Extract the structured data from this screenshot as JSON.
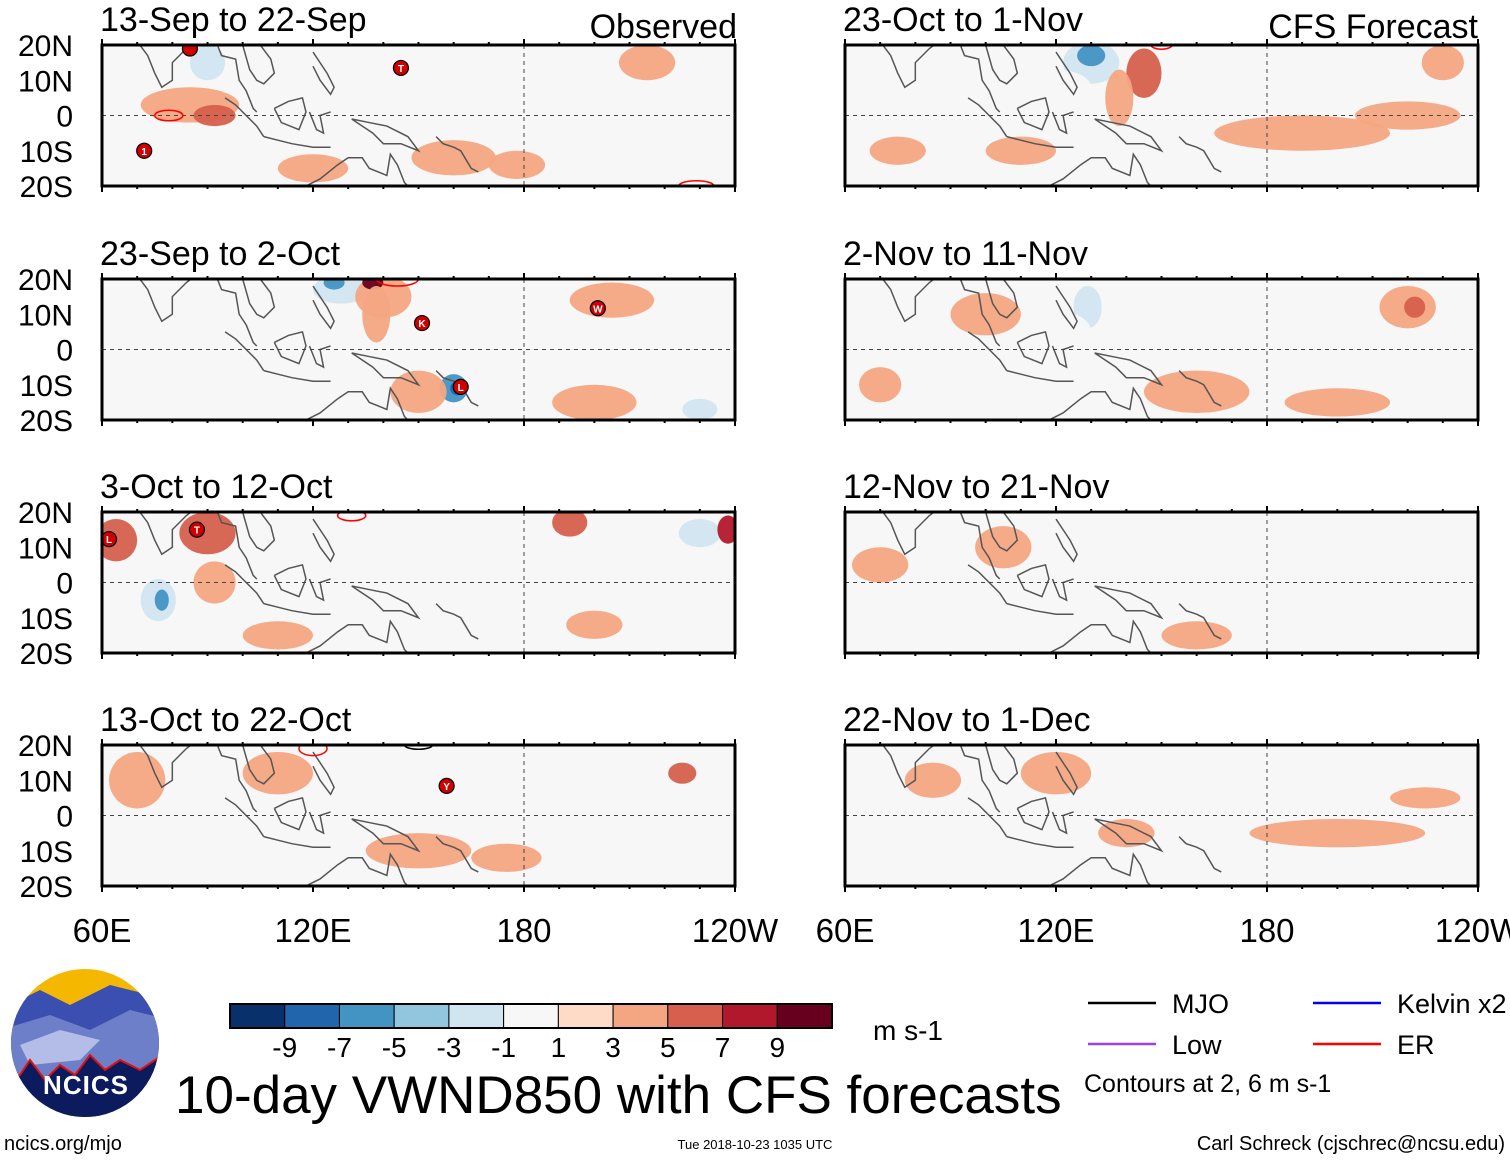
{
  "chart_data": {
    "type": "heatmap",
    "title": "10-day VWND850 with CFS forecasts",
    "units": "m s-1",
    "observed_label": "Observed",
    "forecast_label": "CFS Forecast",
    "lat_ticks": [
      "20N",
      "10N",
      "0",
      "10S",
      "20S"
    ],
    "lat_values": [
      20,
      10,
      0,
      -10,
      -20
    ],
    "lon_ticks": [
      "60E",
      "120E",
      "180",
      "120W"
    ],
    "lon_values": [
      60,
      120,
      180,
      240
    ],
    "colorbar": {
      "colors": [
        "#08306b",
        "#2166ac",
        "#4393c3",
        "#92c5de",
        "#d1e5f0",
        "#f7f7f7",
        "#fddbc7",
        "#f4a582",
        "#d6604d",
        "#b2182b",
        "#67001f"
      ],
      "labels": [
        "-9",
        "-7",
        "-5",
        "-3",
        "-1",
        "1",
        "3",
        "5",
        "7",
        "9"
      ]
    },
    "legend": [
      {
        "label": "MJO",
        "color": "#000000"
      },
      {
        "label": "Kelvin x2",
        "color": "#0000ff"
      },
      {
        "label": "Low",
        "color": "#a040e0"
      },
      {
        "label": "ER",
        "color": "#ff0000"
      }
    ],
    "contour_note": "Contours at 2, 6 m s-1",
    "panels": [
      {
        "title": "13-Sep to 22-Sep",
        "column": "observed",
        "anomalies": [
          [
            85,
            3,
            14,
            5,
            3
          ],
          [
            92,
            0,
            6,
            3,
            5
          ],
          [
            90,
            15,
            5,
            5,
            -3
          ],
          [
            105,
            10,
            10,
            4,
            -1
          ],
          [
            140,
            5,
            12,
            4,
            -1
          ],
          [
            160,
            -12,
            12,
            5,
            3
          ],
          [
            178,
            -14,
            8,
            4,
            3
          ],
          [
            200,
            -5,
            25,
            4,
            -1
          ],
          [
            215,
            15,
            8,
            5,
            3
          ],
          [
            225,
            -15,
            12,
            4,
            -1
          ],
          [
            70,
            -8,
            8,
            6,
            -1
          ],
          [
            120,
            -15,
            10,
            4,
            3
          ]
        ],
        "contours": [
          [
            79,
            0,
            4,
            1.5,
            "ER"
          ],
          [
            229,
            -20,
            5,
            1.5,
            "ER"
          ]
        ],
        "storms": [
          [
            85,
            19,
            ""
          ],
          [
            145,
            13.5,
            "T"
          ],
          [
            72,
            -10,
            "1"
          ]
        ]
      },
      {
        "title": "23-Sep to 2-Oct",
        "column": "observed",
        "anomalies": [
          [
            128,
            17,
            8,
            4,
            -3
          ],
          [
            126,
            19,
            3,
            2,
            -7
          ],
          [
            140,
            15,
            8,
            6,
            3
          ],
          [
            137,
            19,
            3,
            2,
            9
          ],
          [
            138,
            10,
            4,
            8,
            3
          ],
          [
            160,
            -11,
            4,
            4,
            -7
          ],
          [
            161,
            -11,
            2,
            2,
            -9
          ],
          [
            150,
            -12,
            8,
            6,
            3
          ],
          [
            200,
            -15,
            12,
            5,
            3
          ],
          [
            205,
            14,
            12,
            5,
            3
          ],
          [
            160,
            10,
            10,
            6,
            -1
          ],
          [
            100,
            12,
            10,
            5,
            -1
          ],
          [
            70,
            5,
            8,
            5,
            -1
          ],
          [
            230,
            -17,
            5,
            3,
            -3
          ],
          [
            180,
            -5,
            20,
            4,
            -1
          ]
        ],
        "contours": [
          [
            144,
            20,
            6,
            2,
            "ER"
          ]
        ],
        "storms": [
          [
            151,
            7.5,
            "K"
          ],
          [
            162,
            -10.6,
            "L"
          ],
          [
            201,
            11.7,
            "W"
          ]
        ]
      },
      {
        "title": "3-Oct to 12-Oct",
        "column": "observed",
        "anomalies": [
          [
            64,
            12,
            6,
            6,
            5
          ],
          [
            90,
            14,
            8,
            6,
            5
          ],
          [
            92,
            0,
            6,
            6,
            3
          ],
          [
            76,
            -5,
            5,
            6,
            -3
          ],
          [
            77,
            -5,
            2,
            3,
            -7
          ],
          [
            130,
            8,
            14,
            8,
            -1
          ],
          [
            170,
            5,
            15,
            4,
            -1
          ],
          [
            180,
            -5,
            15,
            4,
            -1
          ],
          [
            193,
            17,
            5,
            4,
            5
          ],
          [
            230,
            14,
            6,
            4,
            -3
          ],
          [
            238,
            15,
            3,
            4,
            7
          ],
          [
            200,
            -12,
            8,
            4,
            3
          ],
          [
            110,
            -15,
            10,
            4,
            3
          ]
        ],
        "contours": [
          [
            131,
            19,
            4,
            1.5,
            "ER"
          ]
        ],
        "storms": [
          [
            62,
            12.3,
            "L"
          ],
          [
            87,
            15,
            "T"
          ]
        ]
      },
      {
        "title": "13-Oct to 22-Oct",
        "column": "observed",
        "anomalies": [
          [
            70,
            10,
            8,
            8,
            3
          ],
          [
            90,
            5,
            10,
            8,
            -1
          ],
          [
            110,
            12,
            10,
            6,
            3
          ],
          [
            130,
            10,
            10,
            6,
            -1
          ],
          [
            150,
            -10,
            15,
            5,
            3
          ],
          [
            190,
            10,
            18,
            6,
            -1
          ],
          [
            210,
            -5,
            15,
            4,
            -1
          ],
          [
            225,
            12,
            4,
            3,
            5
          ],
          [
            175,
            -12,
            10,
            4,
            3
          ],
          [
            100,
            -10,
            10,
            4,
            -1
          ]
        ],
        "contours": [
          [
            120,
            19,
            4,
            2,
            "ER"
          ],
          [
            150,
            20,
            4,
            1.2,
            "MJO"
          ]
        ],
        "storms": [
          [
            158,
            8.4,
            "Y"
          ]
        ]
      },
      {
        "title": "23-Oct to 1-Nov",
        "column": "forecast",
        "anomalies": [
          [
            130,
            15,
            8,
            6,
            -3
          ],
          [
            130,
            17,
            4,
            3,
            -7
          ],
          [
            145,
            12,
            5,
            7,
            5
          ],
          [
            138,
            5,
            4,
            8,
            3
          ],
          [
            120,
            8,
            10,
            5,
            -1
          ],
          [
            90,
            5,
            12,
            5,
            -1
          ],
          [
            75,
            -10,
            8,
            4,
            3
          ],
          [
            110,
            -10,
            10,
            4,
            3
          ],
          [
            190,
            -5,
            25,
            5,
            3
          ],
          [
            220,
            0,
            15,
            4,
            3
          ],
          [
            200,
            12,
            12,
            5,
            -1
          ],
          [
            230,
            15,
            6,
            5,
            3
          ]
        ],
        "contours": [
          [
            150,
            20,
            3,
            1.2,
            "ER"
          ]
        ],
        "storms": []
      },
      {
        "title": "2-Nov to 11-Nov",
        "column": "forecast",
        "anomalies": [
          [
            129,
            12,
            4,
            6,
            -3
          ],
          [
            120,
            5,
            10,
            6,
            -1
          ],
          [
            100,
            10,
            10,
            6,
            3
          ],
          [
            80,
            -5,
            10,
            6,
            -1
          ],
          [
            70,
            -10,
            6,
            5,
            3
          ],
          [
            160,
            -12,
            15,
            6,
            3
          ],
          [
            200,
            0,
            20,
            8,
            -1
          ],
          [
            220,
            12,
            8,
            6,
            3
          ],
          [
            222,
            12,
            3,
            3,
            5
          ],
          [
            200,
            -15,
            15,
            4,
            3
          ]
        ],
        "contours": [],
        "storms": []
      },
      {
        "title": "12-Nov to 21-Nov",
        "column": "forecast",
        "anomalies": [
          [
            70,
            5,
            8,
            5,
            3
          ],
          [
            105,
            10,
            8,
            6,
            3
          ],
          [
            130,
            8,
            12,
            8,
            -1
          ],
          [
            140,
            15,
            8,
            4,
            -1
          ],
          [
            90,
            -10,
            8,
            4,
            -1
          ],
          [
            160,
            -15,
            10,
            4,
            3
          ]
        ],
        "contours": [],
        "storms": []
      },
      {
        "title": "22-Nov to 1-Dec",
        "column": "forecast",
        "anomalies": [
          [
            85,
            10,
            8,
            5,
            3
          ],
          [
            120,
            12,
            10,
            6,
            3
          ],
          [
            110,
            0,
            10,
            4,
            -1
          ],
          [
            140,
            -5,
            8,
            4,
            3
          ],
          [
            200,
            -5,
            25,
            4,
            3
          ],
          [
            225,
            5,
            10,
            3,
            3
          ],
          [
            180,
            8,
            15,
            4,
            -1
          ],
          [
            130,
            -12,
            10,
            4,
            -1
          ],
          [
            220,
            -15,
            8,
            4,
            -1
          ]
        ],
        "contours": [],
        "storms": []
      }
    ]
  },
  "logo_text": "NCICS",
  "footer": {
    "url": "ncics.org/mjo",
    "timestamp": "Tue 2018-10-23 1035 UTC",
    "author": "Carl Schreck (cjschrec@ncsu.edu)"
  }
}
